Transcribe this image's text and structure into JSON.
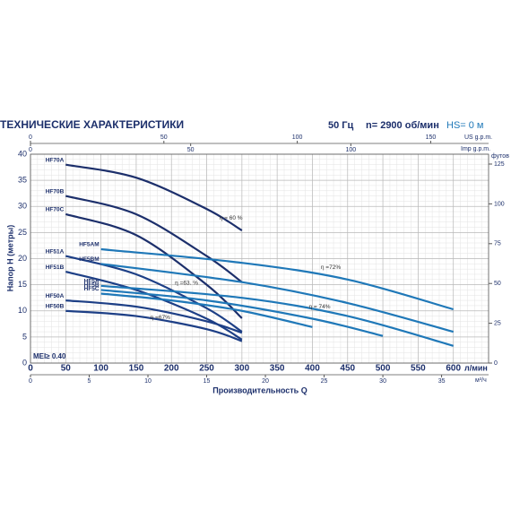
{
  "chart_data": {
    "type": "line",
    "title": "ТЕХНИЧЕСКИЕ ХАРАКТЕРИСТИКИ",
    "frequency": "50 Гц",
    "speed": "n= 2900 об/мин",
    "hs": "HS= 0 м",
    "xlabel": "Производительность Q",
    "x_unit": "л/мин",
    "ylabel": "Напор H  (метры)",
    "mei": "MEI≥ 0.40",
    "xlim": [
      0,
      650
    ],
    "xticks": [
      0,
      50,
      100,
      150,
      200,
      250,
      300,
      350,
      400,
      450,
      500,
      550,
      600
    ],
    "ylim": [
      0,
      40
    ],
    "yticks": [
      0,
      5,
      10,
      15,
      20,
      25,
      30,
      35,
      40
    ],
    "grid": true,
    "x_m3h": {
      "unit": "м³/ч",
      "xlim": [
        0,
        39
      ],
      "xticks": [
        0,
        5,
        10,
        15,
        20,
        25,
        30,
        35
      ]
    },
    "x_us_gpm": {
      "unit": "US g.p.m.",
      "xlim": [
        0,
        171.7
      ],
      "xticks": [
        0,
        50,
        100,
        150
      ]
    },
    "x_imp_gpm": {
      "unit": "Imp g.p.m.",
      "xlim": [
        0,
        143
      ],
      "xticks": [
        0,
        50,
        100
      ]
    },
    "y_feet": {
      "unit": "футов",
      "ylim": [
        0,
        131.2
      ],
      "yticks": [
        0,
        25,
        50,
        75,
        100,
        125
      ]
    },
    "series": [
      {
        "name": "HF70A",
        "color": "#1c2f6b",
        "x": [
          50,
          150,
          250,
          300
        ],
        "values": [
          38,
          35.5,
          29.5,
          25.4
        ]
      },
      {
        "name": "HF70B",
        "color": "#1c2f6b",
        "x": [
          50,
          150,
          250,
          300
        ],
        "values": [
          32,
          28.5,
          20.5,
          15.5
        ]
      },
      {
        "name": "HF70C",
        "color": "#1c2f6b",
        "x": [
          50,
          150,
          250,
          300
        ],
        "values": [
          28.5,
          24.5,
          15,
          8.6
        ]
      },
      {
        "name": "HF51A",
        "color": "#1d3f86",
        "x": [
          50,
          150,
          250,
          300
        ],
        "values": [
          20.5,
          17,
          10.5,
          6
        ]
      },
      {
        "name": "HF51B",
        "color": "#1d3f86",
        "x": [
          50,
          150,
          250,
          300
        ],
        "values": [
          17.5,
          14,
          8.5,
          4.5
        ]
      },
      {
        "name": "HF5AM",
        "color": "#1f78b8",
        "x": [
          100,
          300,
          450,
          600
        ],
        "values": [
          21.8,
          19.2,
          16,
          10.3
        ]
      },
      {
        "name": "HF5BM",
        "color": "#1f78b8",
        "x": [
          100,
          300,
          450,
          600
        ],
        "values": [
          19,
          15.5,
          11.5,
          6
        ]
      },
      {
        "name": "HF5A",
        "color": "#1f78b8",
        "x": [
          100,
          300,
          450,
          600
        ],
        "values": [
          14.8,
          12.5,
          9,
          3.3
        ]
      },
      {
        "name": "HF5B",
        "color": "#1f78b8",
        "x": [
          100,
          250,
          400,
          500
        ],
        "values": [
          14,
          12,
          8.5,
          5.2
        ]
      },
      {
        "name": "HF5C",
        "color": "#1f78b8",
        "x": [
          100,
          200,
          300,
          400
        ],
        "values": [
          13.3,
          12,
          10,
          6.9
        ]
      },
      {
        "name": "HF50A",
        "color": "#1d3f86",
        "x": [
          50,
          150,
          250,
          300
        ],
        "values": [
          12,
          10.8,
          8,
          5.8
        ]
      },
      {
        "name": "HF50B",
        "color": "#1d3f86",
        "x": [
          50,
          150,
          250,
          300
        ],
        "values": [
          10,
          9,
          6.5,
          4.2
        ]
      }
    ],
    "annotations": [
      "η = 60 %",
      "η =63. %",
      "η =67%",
      "η =72%",
      "η = 74%"
    ]
  }
}
